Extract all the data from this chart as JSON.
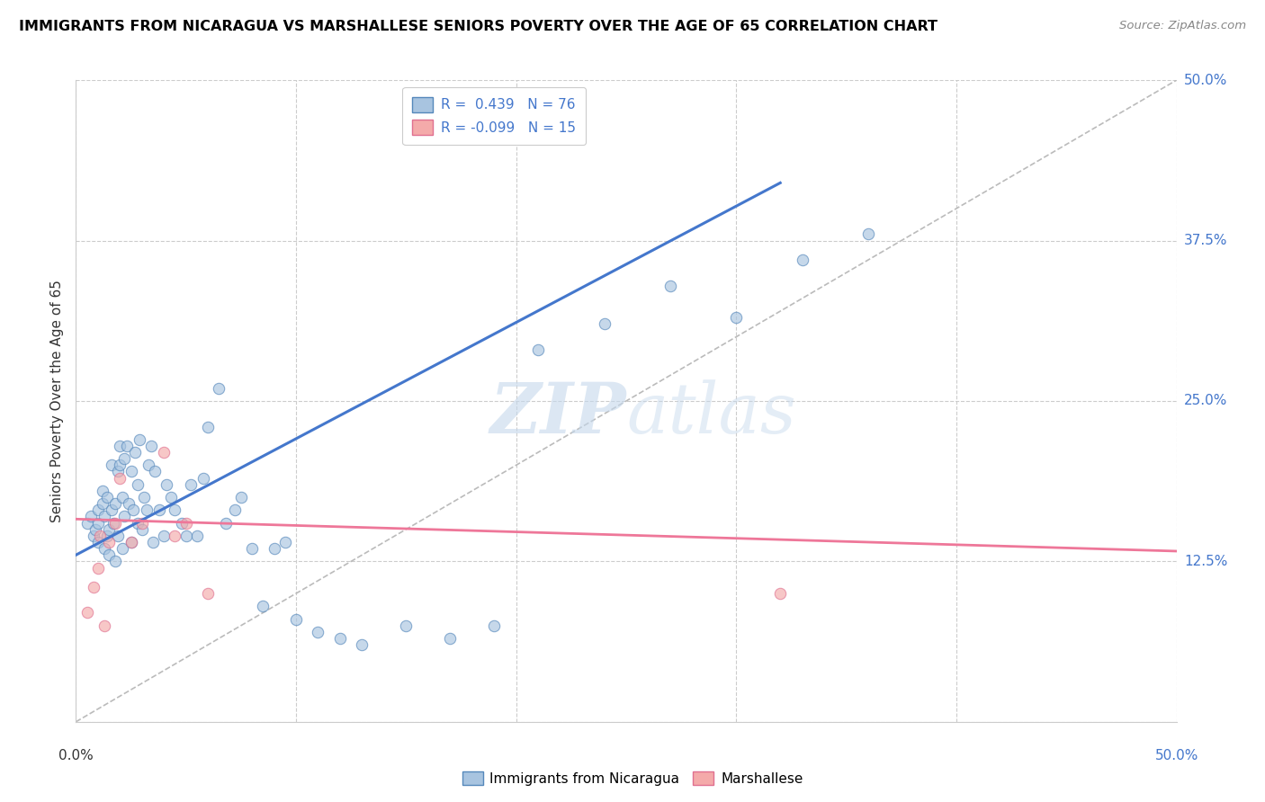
{
  "title": "IMMIGRANTS FROM NICARAGUA VS MARSHALLESE SENIORS POVERTY OVER THE AGE OF 65 CORRELATION CHART",
  "source": "Source: ZipAtlas.com",
  "ylabel": "Seniors Poverty Over the Age of 65",
  "xlim": [
    0.0,
    0.5
  ],
  "ylim": [
    0.0,
    0.5
  ],
  "ytick_values": [
    0.0,
    0.125,
    0.25,
    0.375,
    0.5
  ],
  "ytick_labels": [
    "",
    "12.5%",
    "25.0%",
    "37.5%",
    "50.0%"
  ],
  "xtick_values": [
    0.0,
    0.1,
    0.2,
    0.3,
    0.4,
    0.5
  ],
  "legend_blue_r": "R =  0.439",
  "legend_blue_n": "N = 76",
  "legend_pink_r": "R = -0.099",
  "legend_pink_n": "N = 15",
  "blue_fill": "#A8C4E0",
  "blue_edge": "#5588BB",
  "pink_fill": "#F4AAAA",
  "pink_edge": "#E07090",
  "blue_line_color": "#4477CC",
  "pink_line_color": "#EE7799",
  "diag_color": "#BBBBBB",
  "legend_label_blue": "Immigrants from Nicaragua",
  "legend_label_pink": "Marshallese",
  "blue_scatter_x": [
    0.005,
    0.007,
    0.008,
    0.009,
    0.01,
    0.01,
    0.01,
    0.012,
    0.012,
    0.013,
    0.013,
    0.014,
    0.014,
    0.015,
    0.015,
    0.016,
    0.016,
    0.017,
    0.018,
    0.018,
    0.019,
    0.019,
    0.02,
    0.02,
    0.021,
    0.021,
    0.022,
    0.022,
    0.023,
    0.024,
    0.025,
    0.025,
    0.026,
    0.027,
    0.028,
    0.028,
    0.029,
    0.03,
    0.031,
    0.032,
    0.033,
    0.034,
    0.035,
    0.036,
    0.038,
    0.04,
    0.041,
    0.043,
    0.045,
    0.048,
    0.05,
    0.052,
    0.055,
    0.058,
    0.06,
    0.065,
    0.068,
    0.072,
    0.075,
    0.08,
    0.085,
    0.09,
    0.095,
    0.1,
    0.11,
    0.12,
    0.13,
    0.15,
    0.17,
    0.19,
    0.21,
    0.24,
    0.27,
    0.3,
    0.33,
    0.36
  ],
  "blue_scatter_y": [
    0.155,
    0.16,
    0.145,
    0.15,
    0.14,
    0.155,
    0.165,
    0.17,
    0.18,
    0.135,
    0.16,
    0.145,
    0.175,
    0.13,
    0.15,
    0.165,
    0.2,
    0.155,
    0.125,
    0.17,
    0.145,
    0.195,
    0.2,
    0.215,
    0.135,
    0.175,
    0.16,
    0.205,
    0.215,
    0.17,
    0.14,
    0.195,
    0.165,
    0.21,
    0.155,
    0.185,
    0.22,
    0.15,
    0.175,
    0.165,
    0.2,
    0.215,
    0.14,
    0.195,
    0.165,
    0.145,
    0.185,
    0.175,
    0.165,
    0.155,
    0.145,
    0.185,
    0.145,
    0.19,
    0.23,
    0.26,
    0.155,
    0.165,
    0.175,
    0.135,
    0.09,
    0.135,
    0.14,
    0.08,
    0.07,
    0.065,
    0.06,
    0.075,
    0.065,
    0.075,
    0.29,
    0.31,
    0.34,
    0.315,
    0.36,
    0.38
  ],
  "pink_scatter_x": [
    0.005,
    0.008,
    0.01,
    0.011,
    0.013,
    0.015,
    0.018,
    0.02,
    0.025,
    0.03,
    0.04,
    0.045,
    0.05,
    0.06,
    0.32
  ],
  "pink_scatter_y": [
    0.085,
    0.105,
    0.12,
    0.145,
    0.075,
    0.14,
    0.155,
    0.19,
    0.14,
    0.155,
    0.21,
    0.145,
    0.155,
    0.1,
    0.1
  ],
  "blue_line_x": [
    0.0,
    0.32
  ],
  "blue_line_y": [
    0.13,
    0.42
  ],
  "pink_line_x": [
    0.0,
    0.5
  ],
  "pink_line_y": [
    0.158,
    0.133
  ],
  "diag_line_x": [
    0.0,
    0.5
  ],
  "diag_line_y": [
    0.0,
    0.5
  ],
  "scatter_size": 80,
  "scatter_alpha": 0.65
}
